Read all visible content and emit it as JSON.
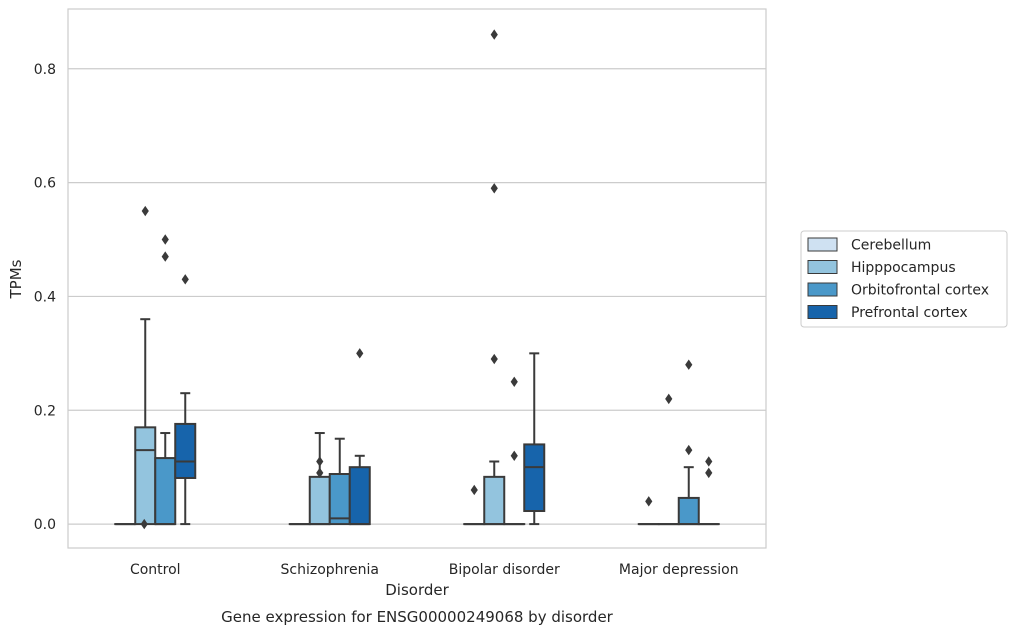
{
  "chart_data": {
    "type": "box",
    "title": "",
    "caption": "Gene expression for ENSG00000249068 by disorder",
    "xlabel": "Disorder",
    "ylabel": "TPMs",
    "ylim": [
      -0.042,
      0.905
    ],
    "yticks": [
      0.0,
      0.2,
      0.4,
      0.6,
      0.8
    ],
    "ytick_labels": [
      "0.0",
      "0.2",
      "0.4",
      "0.6",
      "0.8"
    ],
    "grid": "horizontal",
    "legend_position": "right",
    "categories": [
      "Control",
      "Schizophrenia",
      "Bipolar disorder",
      "Major depression"
    ],
    "series": [
      {
        "name": "Cerebellum",
        "color": "#cfe1f2",
        "boxes": [
          {
            "whisker_low": 0,
            "q1": 0,
            "median": 0,
            "q3": 0,
            "whisker_high": 0,
            "outliers": []
          },
          {
            "whisker_low": 0,
            "q1": 0,
            "median": 0,
            "q3": 0,
            "whisker_high": 0,
            "outliers": []
          },
          {
            "whisker_low": 0,
            "q1": 0,
            "median": 0,
            "q3": 0,
            "whisker_high": 0,
            "outliers": []
          },
          {
            "whisker_low": 0,
            "q1": 0,
            "median": 0,
            "q3": 0,
            "whisker_high": 0,
            "outliers": []
          }
        ]
      },
      {
        "name": "Hipppocampus",
        "color": "#93c4de",
        "boxes": [
          {
            "whisker_low": 0,
            "q1": 0,
            "median": 0.13,
            "q3": 0.17,
            "whisker_high": 0.36,
            "outliers": [
              0.55
            ]
          },
          {
            "whisker_low": 0,
            "q1": 0,
            "median": 0,
            "q3": 0.083,
            "whisker_high": 0.16,
            "outliers": [
              0.09,
              0.11
            ]
          },
          {
            "whisker_low": 0,
            "q1": 0,
            "median": 0,
            "q3": 0.083,
            "whisker_high": 0.11,
            "outliers": [
              0.29,
              0.59,
              0.86
            ]
          },
          {
            "whisker_low": 0,
            "q1": 0,
            "median": 0,
            "q3": 0,
            "whisker_high": 0,
            "outliers": [
              0.22
            ]
          }
        ]
      },
      {
        "name": "Orbitofrontal cortex",
        "color": "#4a98c9",
        "boxes": [
          {
            "whisker_low": 0,
            "q1": 0,
            "median": 0,
            "q3": 0.116,
            "whisker_high": 0.16,
            "outliers": [
              0.47,
              0.5
            ]
          },
          {
            "whisker_low": 0,
            "q1": 0,
            "median": 0.01,
            "q3": 0.088,
            "whisker_high": 0.15,
            "outliers": []
          },
          {
            "whisker_low": 0,
            "q1": 0,
            "median": 0,
            "q3": 0,
            "whisker_high": 0,
            "outliers": [
              0.12,
              0.25
            ]
          },
          {
            "whisker_low": 0,
            "q1": 0,
            "median": 0,
            "q3": 0.046,
            "whisker_high": 0.1,
            "outliers": [
              0.13,
              0.28
            ]
          }
        ]
      },
      {
        "name": "Prefrontal cortex",
        "color": "#1764ab",
        "boxes": [
          {
            "whisker_low": 0,
            "q1": 0.081,
            "median": 0.11,
            "q3": 0.176,
            "whisker_high": 0.23,
            "outliers": [
              0.43
            ]
          },
          {
            "whisker_low": 0,
            "q1": 0,
            "median": 0,
            "q3": 0.1,
            "whisker_high": 0.12,
            "outliers": [
              0.3
            ]
          },
          {
            "whisker_low": 0,
            "q1": 0.023,
            "median": 0.1,
            "q3": 0.14,
            "whisker_high": 0.3,
            "outliers": []
          },
          {
            "whisker_low": 0,
            "q1": 0,
            "median": 0,
            "q3": 0,
            "whisker_high": 0,
            "outliers": [
              0.09,
              0.11
            ]
          }
        ]
      }
    ],
    "extra_outliers": [
      {
        "category": "Control",
        "series_offset": -0.55,
        "value": 0
      },
      {
        "category": "Major depression",
        "series_offset": -1.5,
        "value": 0.04
      },
      {
        "category": "Bipolar disorder",
        "series_offset": -1.5,
        "value": 0.06
      }
    ]
  }
}
